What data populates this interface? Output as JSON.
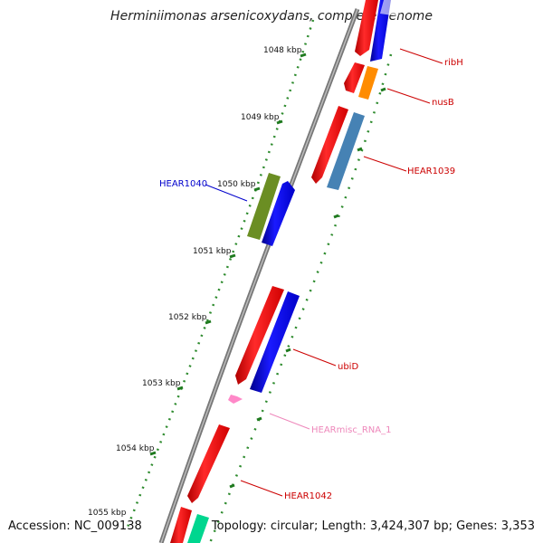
{
  "title": "Herminiimonas arsenicoxydans, complete genome",
  "footer": {
    "accession": "Accession: NC_009138",
    "summary": "Topology: circular; Length: 3,424,307 bp; Genes: 3,353"
  },
  "scale_labels": [
    "1048 kbp",
    "1049 kbp",
    "1050 kbp",
    "1051 kbp",
    "1052 kbp",
    "1053 kbp",
    "1054 kbp",
    "1055 kbp"
  ],
  "gene_labels": {
    "ribH": "ribH",
    "nusB": "nusB",
    "HEAR1039": "HEAR1039",
    "HEAR1040": "HEAR1040",
    "ubiD": "ubiD",
    "HEARmisc_RNA_1": "HEARmisc_RNA_1",
    "HEAR1042": "HEAR1042"
  },
  "colors": {
    "backbone": "#7a7a7a",
    "dotted_track": "#2e8b2e",
    "scale_tick": "#1f7a1f",
    "gene_red": "#ff0000",
    "gene_blue": "#0000ff",
    "gene_orange": "#ff8c00",
    "gene_steelblue": "#4682b4",
    "gene_olive": "#6b8e23",
    "rna_pink": "#ff88c8",
    "gene_teal": "#00d68f",
    "label_red": "#cc0000",
    "label_blue": "#0000cc",
    "label_pink": "#ee88bb"
  }
}
